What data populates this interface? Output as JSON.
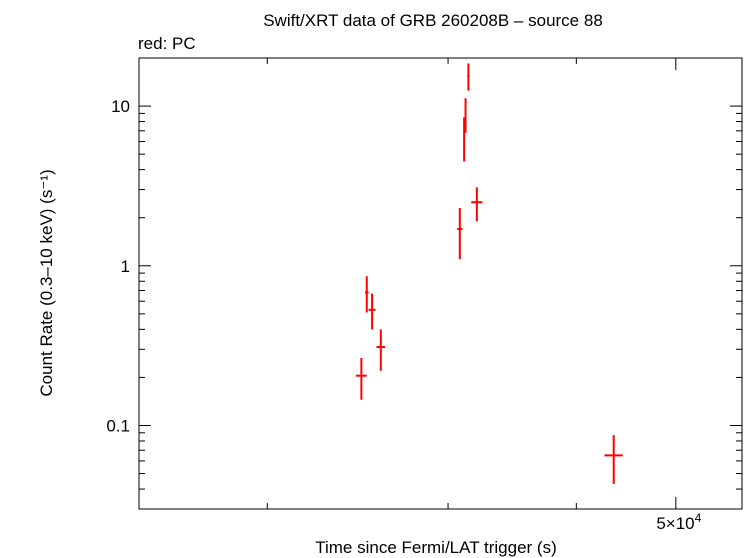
{
  "chart_data": {
    "type": "scatter",
    "title": "Swift/XRT data of GRB 260208B – source 88",
    "subtitle": "red: PC",
    "xlabel": "Time since Fermi/LAT trigger (s)",
    "ylabel": "Count Rate (0.3–10 keV) (s⁻¹)",
    "x_scale": "log",
    "y_scale": "log",
    "xlim": [
      15000,
      58000
    ],
    "ylim": [
      0.03,
      20
    ],
    "y_ticks": [
      {
        "value": 0.1,
        "label": "0.1"
      },
      {
        "value": 1,
        "label": "1"
      },
      {
        "value": 10,
        "label": "10"
      }
    ],
    "x_ticks": [
      {
        "value": 50000,
        "label_base": "5×10",
        "label_exp": "4"
      }
    ],
    "series": [
      {
        "color": "#ff0000",
        "points": [
          {
            "x": 24700,
            "xerr": [
              300,
              300
            ],
            "y": 0.205,
            "yerr": [
              0.06,
              0.06
            ]
          },
          {
            "x": 25000,
            "xerr": [
              100,
              100
            ],
            "y": 0.68,
            "yerr": [
              0.17,
              0.18
            ]
          },
          {
            "x": 25300,
            "xerr": [
              200,
              200
            ],
            "y": 0.53,
            "yerr": [
              0.13,
              0.14
            ]
          },
          {
            "x": 25800,
            "xerr": [
              250,
              250
            ],
            "y": 0.31,
            "yerr": [
              0.09,
              0.09
            ]
          },
          {
            "x": 30800,
            "xerr": [
              180,
              180
            ],
            "y": 1.7,
            "yerr": [
              0.6,
              0.6
            ]
          },
          {
            "x": 31100,
            "xerr": [
              60,
              60
            ],
            "y": 6.5,
            "yerr": [
              2.0,
              2.0
            ]
          },
          {
            "x": 31200,
            "xerr": [
              60,
              60
            ],
            "y": 9.0,
            "yerr": [
              2.2,
              2.2
            ]
          },
          {
            "x": 31400,
            "xerr": [
              80,
              80
            ],
            "y": 15.5,
            "yerr": [
              3.0,
              3.0
            ]
          },
          {
            "x": 32000,
            "xerr": [
              400,
              400
            ],
            "y": 2.5,
            "yerr": [
              0.6,
              0.6
            ]
          },
          {
            "x": 43500,
            "xerr": [
              900,
              900
            ],
            "y": 0.065,
            "yerr": [
              0.022,
              0.022
            ]
          }
        ]
      }
    ]
  }
}
